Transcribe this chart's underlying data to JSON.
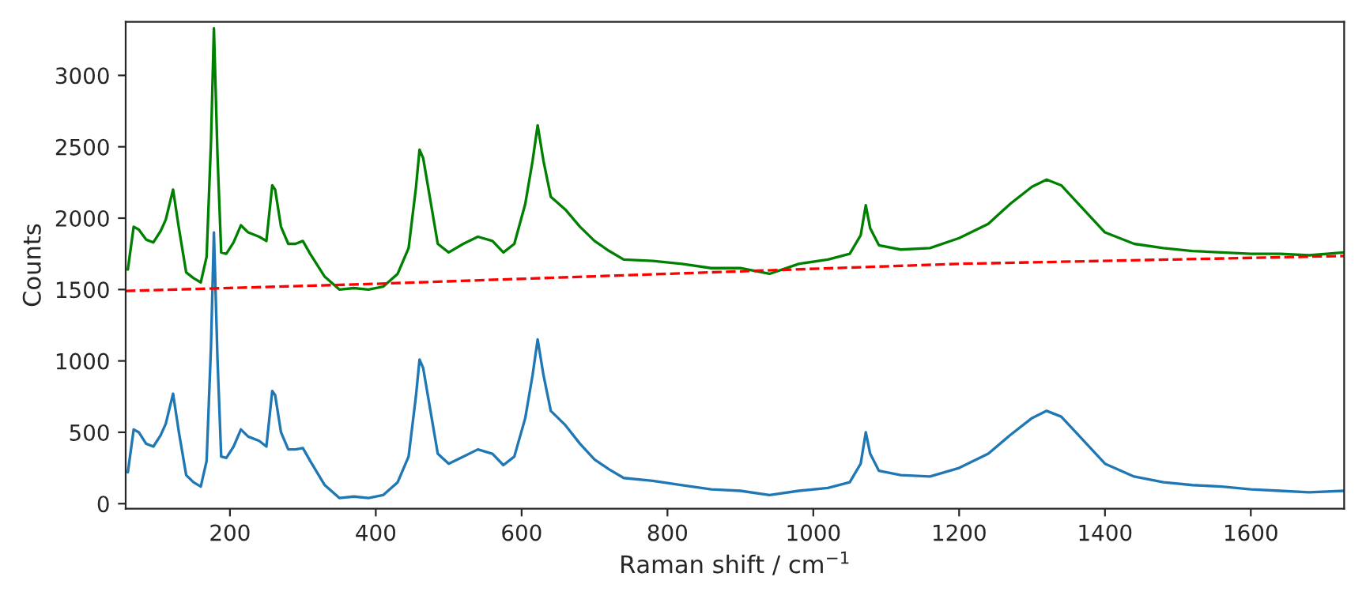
{
  "chart_data": {
    "type": "line",
    "xlabel": "Raman shift / cm$^{−1}$",
    "ylabel": "Counts",
    "xlim": [
      57,
      1728
    ],
    "ylim": [
      -35,
      3375
    ],
    "xticks": [
      200,
      400,
      600,
      800,
      1000,
      1200,
      1400,
      1600
    ],
    "yticks": [
      0,
      500,
      1000,
      1500,
      2000,
      2500,
      3000
    ],
    "grid": false,
    "legend": false,
    "marker": "none",
    "x": [
      60,
      68,
      75,
      85,
      95,
      105,
      112,
      122,
      130,
      140,
      150,
      160,
      168,
      174,
      178,
      183,
      188,
      195,
      205,
      215,
      225,
      240,
      250,
      258,
      262,
      270,
      280,
      290,
      300,
      310,
      330,
      350,
      370,
      390,
      410,
      430,
      445,
      455,
      460,
      465,
      475,
      485,
      500,
      520,
      540,
      560,
      575,
      590,
      605,
      615,
      622,
      630,
      640,
      660,
      680,
      700,
      720,
      740,
      780,
      820,
      860,
      900,
      940,
      980,
      1020,
      1050,
      1065,
      1072,
      1078,
      1090,
      1120,
      1160,
      1200,
      1240,
      1270,
      1300,
      1320,
      1340,
      1360,
      1400,
      1440,
      1480,
      1520,
      1560,
      1600,
      1640,
      1680,
      1728
    ],
    "series": [
      {
        "color": "#1f77b4",
        "line_style": "solid",
        "values": [
          220,
          520,
          500,
          420,
          400,
          480,
          560,
          770,
          500,
          200,
          150,
          120,
          300,
          1100,
          1900,
          1000,
          330,
          320,
          400,
          520,
          470,
          440,
          400,
          790,
          760,
          500,
          380,
          380,
          390,
          300,
          130,
          40,
          50,
          40,
          60,
          150,
          330,
          750,
          1010,
          950,
          650,
          350,
          280,
          330,
          380,
          350,
          270,
          330,
          600,
          900,
          1150,
          900,
          650,
          550,
          420,
          310,
          240,
          180,
          160,
          130,
          100,
          90,
          60,
          90,
          110,
          150,
          280,
          500,
          350,
          230,
          200,
          190,
          250,
          350,
          480,
          600,
          650,
          610,
          500,
          280,
          190,
          150,
          130,
          120,
          100,
          90,
          80,
          90
        ]
      },
      {
        "color": "#008000",
        "line_style": "solid",
        "values": [
          1640,
          1940,
          1920,
          1850,
          1830,
          1910,
          1990,
          2200,
          1930,
          1620,
          1580,
          1550,
          1730,
          2530,
          3330,
          2430,
          1760,
          1750,
          1830,
          1950,
          1900,
          1870,
          1840,
          2230,
          2200,
          1940,
          1820,
          1820,
          1840,
          1750,
          1590,
          1500,
          1510,
          1500,
          1520,
          1610,
          1790,
          2210,
          2480,
          2420,
          2120,
          1820,
          1760,
          1820,
          1870,
          1840,
          1760,
          1820,
          2100,
          2400,
          2650,
          2400,
          2150,
          2060,
          1940,
          1840,
          1770,
          1710,
          1700,
          1680,
          1650,
          1650,
          1610,
          1680,
          1710,
          1750,
          1880,
          2090,
          1930,
          1810,
          1780,
          1790,
          1860,
          1960,
          2100,
          2220,
          2270,
          2230,
          2120,
          1900,
          1820,
          1790,
          1770,
          1760,
          1750,
          1750,
          1740,
          1760
        ]
      },
      {
        "color": "#ff0000",
        "line_style": "dashed",
        "x": [
          57,
          400,
          800,
          1200,
          1728
        ],
        "values": [
          1490,
          1540,
          1610,
          1680,
          1735
        ]
      }
    ]
  }
}
